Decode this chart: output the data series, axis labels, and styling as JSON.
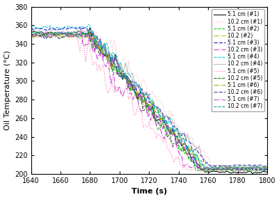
{
  "title": "",
  "xlabel": "Time (s)",
  "ylabel": "Oil Temperature (°C)",
  "xlim": [
    1640,
    1800
  ],
  "ylim": [
    200,
    380
  ],
  "xticks": [
    1640,
    1660,
    1680,
    1700,
    1720,
    1740,
    1760,
    1780,
    1800
  ],
  "yticks": [
    200,
    220,
    240,
    260,
    280,
    300,
    320,
    340,
    360,
    380
  ],
  "series": [
    {
      "label": "5.1 cm (#1)",
      "color": "#000000",
      "ls": "-",
      "lw": 0.8,
      "flat": 352,
      "flat_end": 1678,
      "drop_rate": 9.5,
      "drop_noise": 6.0,
      "plateau1": null,
      "final": 202,
      "final_t": 1757
    },
    {
      "label": "10.2 cm (#1)",
      "color": "#ffaaaa",
      "ls": ":",
      "lw": 0.8,
      "flat": 352,
      "flat_end": 1685,
      "drop_rate": 8.5,
      "drop_noise": 7.0,
      "plateau1": null,
      "final": 205,
      "final_t": 1765
    },
    {
      "label": "5.1 cm (#2)",
      "color": "#00cc00",
      "ls": "--",
      "lw": 0.8,
      "flat": 350,
      "flat_end": 1679,
      "drop_rate": 9.8,
      "drop_noise": 6.5,
      "plateau1": null,
      "final": 204,
      "final_t": 1752
    },
    {
      "label": "10.2 (#2)",
      "color": "#bbbb00",
      "ls": "-.",
      "lw": 0.8,
      "flat": 348,
      "flat_end": 1680,
      "drop_rate": 9.0,
      "drop_noise": 5.5,
      "plateau1": null,
      "final": 206,
      "final_t": 1758
    },
    {
      "label": "5.1 cm (#3)",
      "color": "#3333dd",
      "ls": "--",
      "lw": 1.0,
      "flat": 356,
      "flat_end": 1678,
      "drop_rate": 9.5,
      "drop_noise": 6.0,
      "plateau1": null,
      "final": 205,
      "final_t": 1755
    },
    {
      "label": "10.2 cm (#3)",
      "color": "#cc33cc",
      "ls": "-.",
      "lw": 0.8,
      "flat": 350,
      "flat_end": 1673,
      "drop_rate": 10.5,
      "drop_noise": 8.0,
      "plateau1": 285,
      "final": 207,
      "final_t": 1748
    },
    {
      "label": "5.1 cm (#4)",
      "color": "#00cccc",
      "ls": "--",
      "lw": 0.8,
      "flat": 358,
      "flat_end": 1678,
      "drop_rate": 9.0,
      "drop_noise": 5.5,
      "plateau1": null,
      "final": 206,
      "final_t": 1758
    },
    {
      "label": "10.2 cm (#4)",
      "color": "#bbbbbb",
      "ls": "-",
      "lw": 0.8,
      "flat": 353,
      "flat_end": 1680,
      "drop_rate": 8.8,
      "drop_noise": 5.0,
      "plateau1": null,
      "final": 208,
      "final_t": 1762
    },
    {
      "label": "5.1 cm (#5)",
      "color": "#ff66aa",
      "ls": ":",
      "lw": 0.8,
      "flat": 348,
      "flat_end": 1670,
      "drop_rate": 10.0,
      "drop_noise": 9.0,
      "plateau1": 290,
      "final": 204,
      "final_t": 1745
    },
    {
      "label": "10.2 cm (#5)",
      "color": "#007700",
      "ls": "--",
      "lw": 0.8,
      "flat": 350,
      "flat_end": 1678,
      "drop_rate": 9.5,
      "drop_noise": 6.5,
      "plateau1": null,
      "final": 205,
      "final_t": 1753
    },
    {
      "label": "5.1 cm (#6)",
      "color": "#99aa00",
      "ls": "-.",
      "lw": 0.8,
      "flat": 349,
      "flat_end": 1679,
      "drop_rate": 9.2,
      "drop_noise": 6.0,
      "plateau1": null,
      "final": 207,
      "final_t": 1756
    },
    {
      "label": "10.2 cm (#6)",
      "color": "#5555bb",
      "ls": "--",
      "lw": 1.0,
      "flat": 348,
      "flat_end": 1681,
      "drop_rate": 8.8,
      "drop_noise": 5.5,
      "plateau1": null,
      "final": 209,
      "final_t": 1760
    },
    {
      "label": "5.1 cm (#7)",
      "color": "#cc44cc",
      "ls": "-.",
      "lw": 0.8,
      "flat": 350,
      "flat_end": 1678,
      "drop_rate": 9.3,
      "drop_noise": 6.5,
      "plateau1": null,
      "final": 206,
      "final_t": 1754
    },
    {
      "label": "10.2 cm (#7)",
      "color": "#00aaaa",
      "ls": "--",
      "lw": 0.8,
      "flat": 351,
      "flat_end": 1680,
      "drop_rate": 9.0,
      "drop_noise": 6.0,
      "plateau1": null,
      "final": 207,
      "final_t": 1758
    }
  ],
  "legend_fontsize": 5.5,
  "tick_fontsize": 7,
  "label_fontsize": 8
}
